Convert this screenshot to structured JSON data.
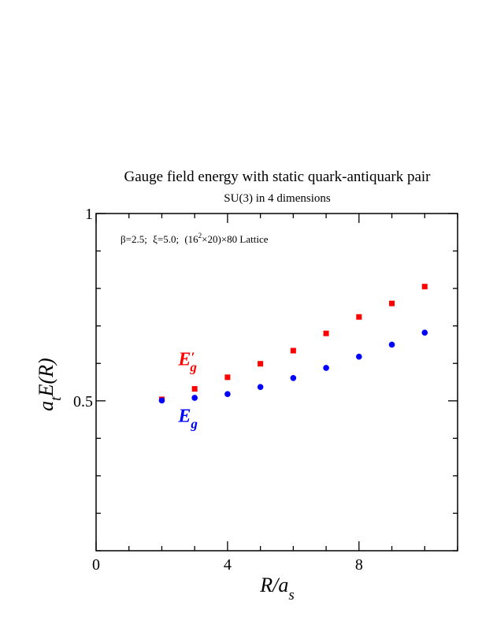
{
  "chart_data": {
    "type": "scatter",
    "title": "Gauge field energy with static quark-antiquark pair",
    "subtitle": "SU(3) in 4 dimensions",
    "annotation": {
      "beta": "β=2.5;",
      "xi": "ξ=5.0;",
      "lattice_prefix": "(16",
      "lattice_exp": "2",
      "lattice_suffix": "×20)×80 Lattice"
    },
    "xlabel": {
      "main": "R/a",
      "sub": "s"
    },
    "ylabel": {
      "a": "a",
      "sub": "t",
      "main": "E(R)"
    },
    "xlim": [
      0,
      11
    ],
    "ylim": [
      0.1,
      1.0
    ],
    "x_ticks": [
      {
        "value": 0,
        "label": "0"
      },
      {
        "value": 4,
        "label": "4"
      },
      {
        "value": 8,
        "label": "8"
      }
    ],
    "y_ticks": [
      {
        "value": 0.5,
        "label": "0.5"
      },
      {
        "value": 1.0,
        "label": "1"
      }
    ],
    "x_minor_step": 1,
    "y_minor_step": 0.1,
    "grid": false,
    "series": [
      {
        "name": "E′g",
        "label_main": "E",
        "label_prime": "′",
        "label_sub": "g",
        "color": "#ff0000",
        "marker": "square",
        "label_at": {
          "x": 2.5,
          "y": 0.595
        },
        "x": [
          2,
          3,
          4,
          5,
          6,
          7,
          8,
          9,
          10
        ],
        "y": [
          0.504,
          0.532,
          0.563,
          0.599,
          0.634,
          0.68,
          0.724,
          0.76,
          0.805
        ]
      },
      {
        "name": "Eg",
        "label_main": "E",
        "label_prime": "",
        "label_sub": "g",
        "color": "#0000ff",
        "marker": "circle",
        "label_at": {
          "x": 2.5,
          "y": 0.444
        },
        "x": [
          2,
          3,
          4,
          5,
          6,
          7,
          8,
          9,
          10
        ],
        "y": [
          0.501,
          0.508,
          0.518,
          0.537,
          0.561,
          0.588,
          0.618,
          0.65,
          0.682
        ]
      }
    ]
  }
}
